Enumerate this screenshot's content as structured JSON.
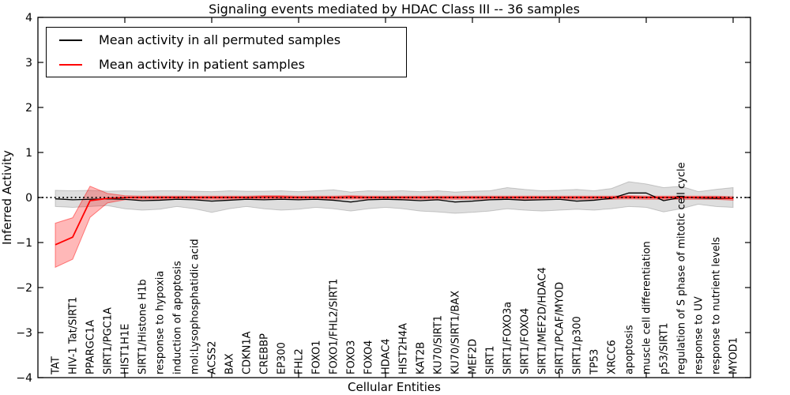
{
  "chart_data": {
    "type": "line",
    "title": "Signaling events mediated by HDAC Class III -- 36 samples",
    "xlabel": "Cellular Entities",
    "ylabel": "Inferred Activity",
    "ylim": [
      -4,
      4
    ],
    "yticks": [
      4,
      3,
      2,
      1,
      0,
      -1,
      -2,
      -3,
      -4
    ],
    "xtick_positions": [
      5,
      10,
      15,
      20,
      25,
      30,
      35,
      40
    ],
    "grid": false,
    "legend_position": "upper left",
    "categories": [
      "TAT",
      "HIV-1 Tat/SIRT1",
      "PPARGC1A",
      "SIRT1/PGC1A",
      "HIST1H1E",
      "SIRT1/Histone H1b",
      "response to hypoxia",
      "induction of apoptosis",
      "mol:Lysophosphatidic acid",
      "ACSS2",
      "BAX",
      "CDKN1A",
      "CREBBP",
      "EP300",
      "FHL2",
      "FOXO1",
      "FOXO1/FHL2/SIRT1",
      "FOXO3",
      "FOXO4",
      "HDAC4",
      "HIST2H4A",
      "KAT2B",
      "KU70/SIRT1",
      "KU70/SIRT1/BAX",
      "MEF2D",
      "SIRT1",
      "SIRT1/FOXO3a",
      "SIRT1/FOXO4",
      "SIRT1/MEF2D/HDAC4",
      "SIRT1/PCAF/MYOD",
      "SIRT1/p300",
      "TP53",
      "XRCC6",
      "apoptosis",
      "muscle cell differentiation",
      "p53/SIRT1",
      "regulation of S phase of mitotic cell cycle",
      "response to UV",
      "response to nutrient levels",
      "MYOD1"
    ],
    "series": [
      {
        "name": "Mean activity in all permuted samples",
        "color": "#000000",
        "style": "solid",
        "values": [
          -0.03,
          -0.05,
          -0.04,
          -0.03,
          -0.04,
          -0.07,
          -0.06,
          -0.04,
          -0.05,
          -0.08,
          -0.06,
          -0.04,
          -0.05,
          -0.04,
          -0.05,
          -0.04,
          -0.06,
          -0.1,
          -0.05,
          -0.04,
          -0.05,
          -0.07,
          -0.05,
          -0.1,
          -0.08,
          -0.05,
          -0.04,
          -0.06,
          -0.05,
          -0.04,
          -0.08,
          -0.06,
          -0.02,
          0.1,
          0.1,
          -0.07,
          0.0,
          -0.01,
          -0.02,
          -0.02
        ]
      },
      {
        "name": "Mean activity in patient samples",
        "color": "#ff0000",
        "style": "solid",
        "values": [
          -1.05,
          -0.88,
          -0.07,
          -0.02,
          0,
          0,
          0,
          0,
          0,
          0,
          0,
          0,
          0.01,
          0.01,
          0,
          0,
          0,
          0.01,
          0,
          0,
          0,
          0,
          0,
          0,
          0,
          0,
          0,
          0,
          0,
          0,
          0,
          0,
          0,
          0.01,
          0,
          0,
          0,
          0,
          0,
          -0.02
        ]
      }
    ],
    "bands": [
      {
        "name": "permuted samples std band",
        "fill": "rgba(0,0,0,0.13)",
        "edge": "rgba(0,0,0,0.18)",
        "hi": [
          0.16,
          0.15,
          0.16,
          0.14,
          0.15,
          0.14,
          0.15,
          0.15,
          0.14,
          0.13,
          0.15,
          0.14,
          0.14,
          0.15,
          0.13,
          0.15,
          0.17,
          0.12,
          0.15,
          0.14,
          0.15,
          0.13,
          0.15,
          0.12,
          0.14,
          0.15,
          0.22,
          0.18,
          0.15,
          0.16,
          0.18,
          0.15,
          0.2,
          0.35,
          0.3,
          0.22,
          0.25,
          0.13,
          0.18,
          0.22
        ],
        "lo": [
          -0.2,
          -0.22,
          -0.2,
          -0.18,
          -0.25,
          -0.28,
          -0.26,
          -0.2,
          -0.25,
          -0.33,
          -0.25,
          -0.2,
          -0.25,
          -0.28,
          -0.26,
          -0.22,
          -0.25,
          -0.3,
          -0.25,
          -0.22,
          -0.25,
          -0.3,
          -0.32,
          -0.35,
          -0.33,
          -0.3,
          -0.25,
          -0.28,
          -0.3,
          -0.28,
          -0.26,
          -0.28,
          -0.25,
          -0.2,
          -0.22,
          -0.32,
          -0.25,
          -0.15,
          -0.2,
          -0.22
        ]
      },
      {
        "name": "patient samples std band",
        "fill": "rgba(255,0,0,0.28)",
        "edge": "rgba(255,0,0,0.45)",
        "hi": [
          -0.57,
          -0.45,
          0.25,
          0.09,
          0.04,
          0.03,
          0.03,
          0.03,
          0.03,
          0.03,
          0.03,
          0.03,
          0.04,
          0.04,
          0.03,
          0.03,
          0.03,
          0.04,
          0.03,
          0.03,
          0.03,
          0.03,
          0.03,
          0.03,
          0.03,
          0.03,
          0.03,
          0.03,
          0.03,
          0.03,
          0.03,
          0.03,
          0.03,
          0.04,
          0.03,
          0.03,
          0.03,
          0.03,
          0.03,
          0.02
        ],
        "lo": [
          -1.55,
          -1.37,
          -0.44,
          -0.12,
          -0.05,
          -0.04,
          -0.04,
          -0.04,
          -0.04,
          -0.04,
          -0.04,
          -0.04,
          -0.03,
          -0.03,
          -0.04,
          -0.04,
          -0.04,
          -0.03,
          -0.04,
          -0.04,
          -0.04,
          -0.04,
          -0.04,
          -0.04,
          -0.04,
          -0.04,
          -0.04,
          -0.04,
          -0.04,
          -0.04,
          -0.04,
          -0.04,
          -0.04,
          -0.03,
          -0.04,
          -0.04,
          -0.04,
          -0.04,
          -0.04,
          -0.06
        ]
      }
    ],
    "zero_line": {
      "value": 0,
      "color": "#000000",
      "style": "dotted"
    }
  },
  "colors": {
    "background": "#ffffff",
    "frame": "#000000",
    "tick": "#000000"
  }
}
